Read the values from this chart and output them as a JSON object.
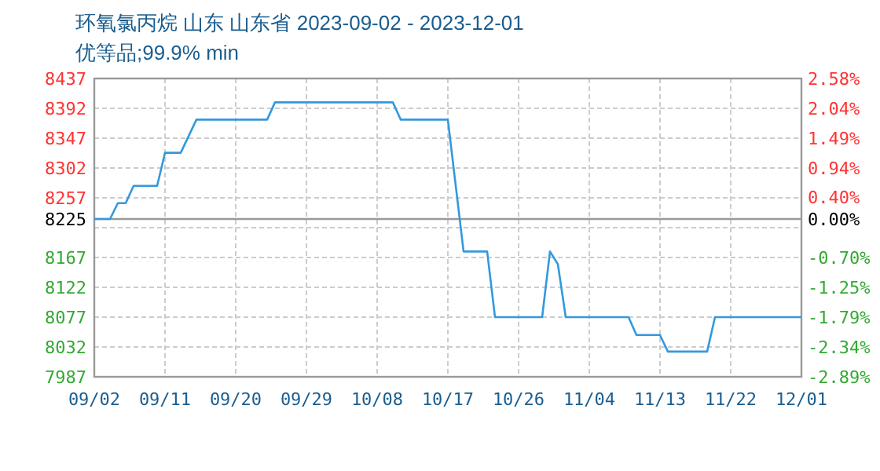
{
  "chart_data": {
    "type": "line",
    "title": "环氧氯丙烷 山东 山东省 2023-09-02 - 2023-12-01",
    "subtitle": "优等品;99.9% min",
    "x": [
      "2023-09-02",
      "2023-09-04",
      "2023-09-05",
      "2023-09-06",
      "2023-09-07",
      "2023-09-10",
      "2023-09-11",
      "2023-09-13",
      "2023-09-15",
      "2023-09-24",
      "2023-09-25",
      "2023-10-10",
      "2023-10-11",
      "2023-10-17",
      "2023-10-19",
      "2023-10-22",
      "2023-10-23",
      "2023-10-29",
      "2023-10-30",
      "2023-10-31",
      "2023-11-01",
      "2023-11-09",
      "2023-11-10",
      "2023-11-13",
      "2023-11-14",
      "2023-11-19",
      "2023-11-20",
      "2023-12-01"
    ],
    "series": [
      {
        "color": "#3399dd",
        "values": [
          8225,
          8225,
          8249,
          8249,
          8275,
          8275,
          8325,
          8325,
          8375,
          8375,
          8401,
          8401,
          8375,
          8375,
          8176,
          8176,
          8077,
          8077,
          8176,
          8157,
          8077,
          8077,
          8050,
          8050,
          8025,
          8025,
          8077,
          8077
        ]
      }
    ],
    "xlim": [
      "2023-09-02",
      "2023-12-01"
    ],
    "xticks": [
      {
        "value": "2023-09-02",
        "label": "09/02"
      },
      {
        "value": "2023-09-11",
        "label": "09/11"
      },
      {
        "value": "2023-09-20",
        "label": "09/20"
      },
      {
        "value": "2023-09-29",
        "label": "09/29"
      },
      {
        "value": "2023-10-08",
        "label": "10/08"
      },
      {
        "value": "2023-10-17",
        "label": "10/17"
      },
      {
        "value": "2023-10-26",
        "label": "10/26"
      },
      {
        "value": "2023-11-04",
        "label": "11/04"
      },
      {
        "value": "2023-11-13",
        "label": "11/13"
      },
      {
        "value": "2023-11-22",
        "label": "11/22"
      },
      {
        "value": "2023-12-01",
        "label": "12/01"
      }
    ],
    "ylim": [
      7987,
      8437
    ],
    "yticks": [
      7987,
      8032,
      8077,
      8122,
      8167,
      {
        "value": 8212,
        "label": null
      },
      8225,
      8257,
      8302,
      8347,
      8392,
      8437
    ],
    "y2lim": [
      -2.89,
      2.58
    ],
    "y2ticks": [
      {
        "value": -2.89,
        "label": "-2.89%"
      },
      {
        "value": -2.34,
        "label": "-2.34%"
      },
      {
        "value": -1.79,
        "label": "-1.79%"
      },
      {
        "value": -1.25,
        "label": "-1.25%"
      },
      {
        "value": -0.7,
        "label": "-0.70%"
      },
      {
        "value": 0,
        "label": "0.00%"
      },
      {
        "value": 0.4,
        "label": "0.40%"
      },
      {
        "value": 0.94,
        "label": "0.94%"
      },
      {
        "value": 1.49,
        "label": "1.49%"
      },
      {
        "value": 2.04,
        "label": "2.04%"
      },
      {
        "value": 2.58,
        "label": "2.58%"
      }
    ],
    "ref_lines": [
      {
        "axis": "y",
        "value": 8225,
        "color": "#999999"
      }
    ],
    "grid": true,
    "line_style": "solid",
    "marker": "none"
  }
}
